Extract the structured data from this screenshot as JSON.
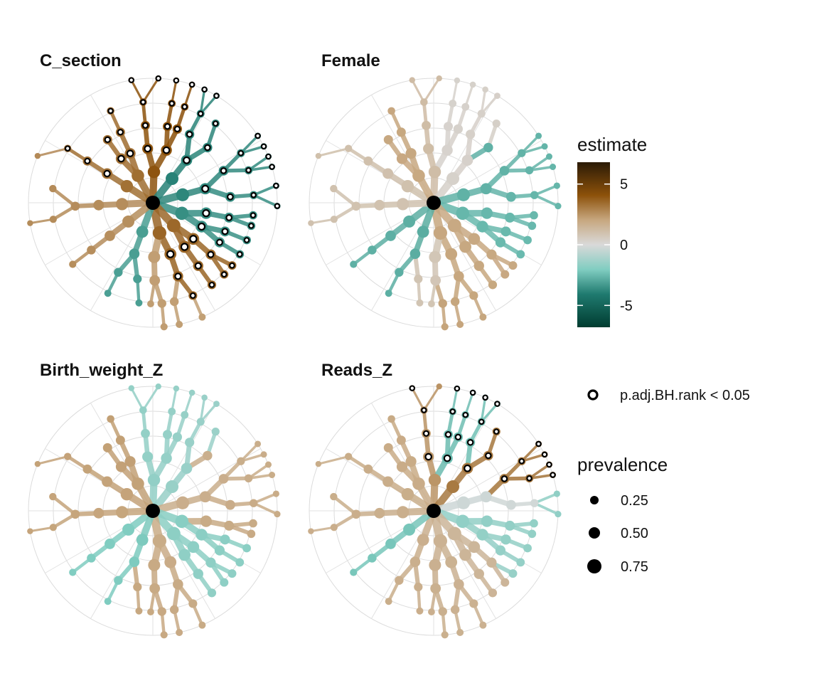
{
  "chart_data": {
    "type": "tree",
    "panels": [
      {
        "title": "C_section"
      },
      {
        "title": "Female"
      },
      {
        "title": "Birth_weight_Z"
      },
      {
        "title": "Reads_Z"
      }
    ],
    "legend": {
      "estimate": {
        "title": "estimate",
        "ticks": [
          {
            "value": 5,
            "label": "5"
          },
          {
            "value": 0,
            "label": "0"
          },
          {
            "value": -5,
            "label": "-5"
          }
        ],
        "range": [
          -6.8,
          6.8
        ],
        "colors": {
          "min": "#003c30",
          "neg_mid": "#35978f",
          "neg_light": "#80cdc1",
          "zero": "#d9d9d9",
          "pos_light": "#c7a77f",
          "pos_mid": "#8c510a",
          "max": "#2b1a06"
        }
      },
      "significance": {
        "label": "p.adj.BH.rank < 0.05"
      },
      "prevalence": {
        "title": "prevalence",
        "items": [
          {
            "value": 0.25,
            "label": "0.25"
          },
          {
            "value": 0.5,
            "label": "0.50"
          },
          {
            "value": 0.75,
            "label": "0.75"
          }
        ]
      }
    }
  }
}
